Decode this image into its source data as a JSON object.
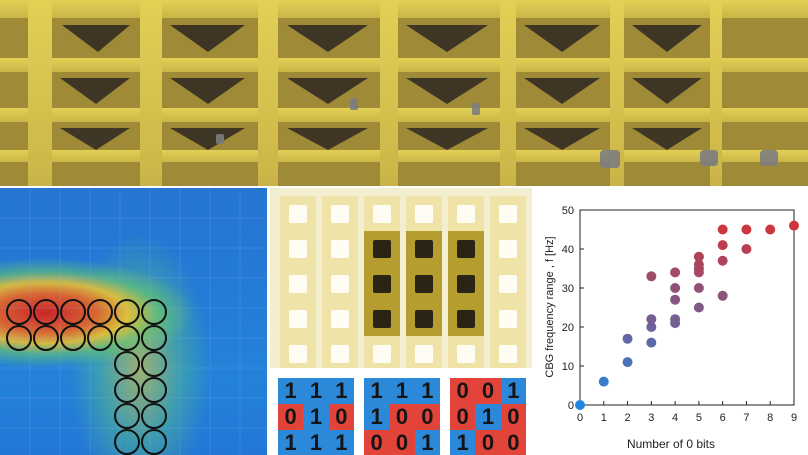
{
  "image": {
    "top_photo": {
      "description_icon": "yellow-lattice-photo"
    },
    "heatmap": {
      "colors": {
        "low": "#2f4bc8",
        "mid": "#62c976",
        "high": "#d32121"
      },
      "markers": {
        "rows": [
          {
            "x": [
              0,
              1,
              2,
              3,
              4,
              5
            ],
            "y": 0
          },
          {
            "x": [
              0,
              1,
              2,
              3,
              4,
              5
            ],
            "y": 1
          },
          {
            "x": [
              4,
              5
            ],
            "y": 2
          },
          {
            "x": [
              4,
              5
            ],
            "y": 3
          },
          {
            "x": [
              4,
              5
            ],
            "y": 4
          },
          {
            "x": [
              4,
              5
            ],
            "y": 5
          }
        ]
      }
    },
    "lattice": {
      "colors": {
        "faded": "#efe3a7",
        "active": "#b59d2f"
      },
      "active_block": {
        "rows": [
          1,
          2,
          3
        ],
        "cols": [
          2,
          3,
          4
        ]
      }
    },
    "bit_matrices": [
      {
        "bits": [
          "1",
          "1",
          "1",
          "0",
          "1",
          "0",
          "1",
          "1",
          "1"
        ]
      },
      {
        "bits": [
          "1",
          "1",
          "1",
          "1",
          "0",
          "0",
          "0",
          "0",
          "1"
        ]
      },
      {
        "bits": [
          "0",
          "0",
          "1",
          "0",
          "1",
          "0",
          "1",
          "0",
          "0"
        ]
      }
    ]
  },
  "chart_data": {
    "type": "scatter",
    "xlabel": "Number of 0 bits",
    "ylabel": "CBG frequency range , f [Hz]",
    "xlim": [
      0,
      9
    ],
    "ylim": [
      0,
      50
    ],
    "xticks": [
      0,
      1,
      2,
      3,
      4,
      5,
      6,
      7,
      8,
      9
    ],
    "yticks": [
      0,
      10,
      20,
      30,
      40,
      50
    ],
    "points": [
      {
        "x": 0,
        "y": 0
      },
      {
        "x": 1,
        "y": 6
      },
      {
        "x": 2,
        "y": 11
      },
      {
        "x": 2,
        "y": 17
      },
      {
        "x": 3,
        "y": 16
      },
      {
        "x": 3,
        "y": 20
      },
      {
        "x": 3,
        "y": 22
      },
      {
        "x": 3,
        "y": 33
      },
      {
        "x": 4,
        "y": 21
      },
      {
        "x": 4,
        "y": 22
      },
      {
        "x": 4,
        "y": 27
      },
      {
        "x": 4,
        "y": 30
      },
      {
        "x": 4,
        "y": 34
      },
      {
        "x": 5,
        "y": 25
      },
      {
        "x": 5,
        "y": 30
      },
      {
        "x": 5,
        "y": 34
      },
      {
        "x": 5,
        "y": 35
      },
      {
        "x": 5,
        "y": 36
      },
      {
        "x": 5,
        "y": 38
      },
      {
        "x": 6,
        "y": 28
      },
      {
        "x": 6,
        "y": 37
      },
      {
        "x": 6,
        "y": 41
      },
      {
        "x": 6,
        "y": 45
      },
      {
        "x": 7,
        "y": 40
      },
      {
        "x": 7,
        "y": 45
      },
      {
        "x": 8,
        "y": 45
      },
      {
        "x": 9,
        "y": 46
      }
    ]
  }
}
